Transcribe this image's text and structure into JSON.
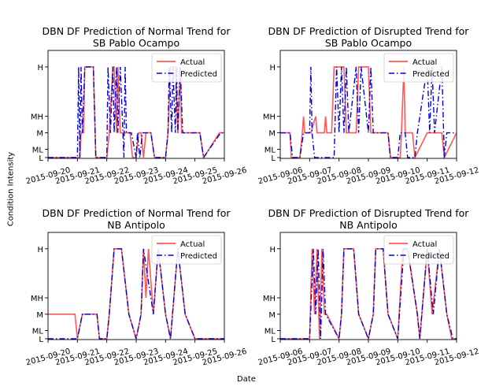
{
  "figure": {
    "xlabel": "Date",
    "ylabel": "Condition Intensity"
  },
  "colors": {
    "actual": "#ff3b3b",
    "predicted": "#0000dd"
  },
  "chart_data": [
    {
      "type": "line",
      "title": "DBN DF Prediction of Normal Trend for\nSB Pablo Ocampo",
      "x_ticks": [
        "2015-09-20",
        "2015-09-21",
        "2015-09-22",
        "2015-09-23",
        "2015-09-24",
        "2015-09-25",
        "2015-09-26"
      ],
      "y_ticks": [
        "L",
        "ML",
        "M",
        "MH",
        "H"
      ],
      "y_levels": {
        "L": 0,
        "ML": 0.5,
        "M": 1.5,
        "MH": 2.5,
        "H": 5.5
      },
      "xlim": [
        "2015-09-20",
        "2015-09-26"
      ],
      "legend": {
        "position": "top-right",
        "entries": [
          "Actual",
          "Predicted"
        ]
      },
      "series": [
        {
          "name": "Actual",
          "style": "solid",
          "color": "#ff3b3b",
          "x": [
            "2015-09-20",
            "2015-09-21 00:00",
            "2015-09-21 02:00",
            "2015-09-21 03:00",
            "2015-09-21 05:00",
            "2015-09-21 06:00",
            "2015-09-21 13:00",
            "2015-09-21 15:00",
            "2015-09-22 00:00",
            "2015-09-22 02:00",
            "2015-09-22 05:00",
            "2015-09-22 06:00",
            "2015-09-22 08:00",
            "2015-09-22 09:00",
            "2015-09-22 11:00",
            "2015-09-22 19:00",
            "2015-09-22 21:00",
            "2015-09-23 00:00",
            "2015-09-23 02:00",
            "2015-09-23 04:00",
            "2015-09-23 06:00",
            "2015-09-23 08:00",
            "2015-09-23 12:00",
            "2015-09-23 15:00",
            "2015-09-24 00:00",
            "2015-09-24 02:00",
            "2015-09-24 04:00",
            "2015-09-24 08:00",
            "2015-09-24 10:00",
            "2015-09-24 12:00",
            "2015-09-24 13:00",
            "2015-09-25 04:00",
            "2015-09-25 07:00",
            "2015-09-25 20:00",
            "2015-09-26"
          ],
          "y": [
            0,
            0,
            0,
            1.5,
            1.5,
            5.5,
            5.5,
            0,
            0,
            1.5,
            5.5,
            5.5,
            1.5,
            5.5,
            1.5,
            1.5,
            0,
            0,
            1.5,
            1.5,
            0,
            1.5,
            1.5,
            0,
            0,
            1.5,
            5.5,
            5.5,
            1.5,
            5.5,
            1.5,
            1.5,
            0,
            1.5,
            1.5
          ]
        },
        {
          "name": "Predicted",
          "style": "dashdot",
          "color": "#0000dd",
          "x": [
            "2015-09-20",
            "2015-09-21 00:00",
            "2015-09-21 01:00",
            "2015-09-21 02:00",
            "2015-09-21 03:00",
            "2015-09-21 04:00",
            "2015-09-21 06:00",
            "2015-09-21 12:00",
            "2015-09-21 13:00",
            "2015-09-21 15:00",
            "2015-09-22 00:00",
            "2015-09-22 01:00",
            "2015-09-22 03:00",
            "2015-09-22 05:00",
            "2015-09-22 06:00",
            "2015-09-22 08:00",
            "2015-09-22 09:00",
            "2015-09-22 11:00",
            "2015-09-22 14:00",
            "2015-09-22 15:00",
            "2015-09-22 16:00",
            "2015-09-22 20:00",
            "2015-09-23 00:00",
            "2015-09-23 01:00",
            "2015-09-23 03:00",
            "2015-09-23 05:00",
            "2015-09-23 07:00",
            "2015-09-23 12:00",
            "2015-09-23 15:00",
            "2015-09-24 00:00",
            "2015-09-24 02:00",
            "2015-09-24 03:00",
            "2015-09-24 05:00",
            "2015-09-24 06:00",
            "2015-09-24 08:00",
            "2015-09-24 09:00",
            "2015-09-24 10:00",
            "2015-09-24 12:00",
            "2015-09-24 14:00",
            "2015-09-25 04:00",
            "2015-09-25 07:00",
            "2015-09-25 21:00",
            "2015-09-26"
          ],
          "y": [
            0,
            0,
            5.5,
            0,
            5.5,
            1.5,
            5.5,
            5.5,
            5.5,
            0,
            0,
            5.5,
            1.5,
            5.5,
            1.5,
            5.5,
            1.5,
            5.5,
            0,
            5.5,
            1.5,
            1.5,
            0,
            1.5,
            0,
            1.5,
            1.5,
            1.5,
            0,
            0,
            1.5,
            5.5,
            1.5,
            5.5,
            1.5,
            5.5,
            1.5,
            5.5,
            1.5,
            1.5,
            0,
            1.5,
            1.5
          ]
        }
      ]
    },
    {
      "type": "line",
      "title": "DBN DF Prediction of Disrupted Trend for\nSB Pablo Ocampo",
      "x_ticks": [
        "2015-09-06",
        "2015-09-07",
        "2015-09-08",
        "2015-09-09",
        "2015-09-10",
        "2015-09-11",
        "2015-09-12"
      ],
      "y_ticks": [
        "L",
        "ML",
        "M",
        "MH",
        "H"
      ],
      "y_levels": {
        "L": 0,
        "ML": 0.5,
        "M": 1.5,
        "MH": 2.5,
        "H": 5.5
      },
      "xlim": [
        "2015-09-06",
        "2015-09-12"
      ],
      "legend": {
        "position": "top-right",
        "entries": [
          "Actual",
          "Predicted"
        ]
      },
      "series": [
        {
          "name": "Actual",
          "style": "solid",
          "color": "#ff3b3b",
          "x": [
            "2015-09-06",
            "2015-09-06 08:00",
            "2015-09-06 09:00",
            "2015-09-06 16:00",
            "2015-09-06 18:00",
            "2015-09-06 19:00",
            "2015-09-06 20:00",
            "2015-09-06 21:00",
            "2015-09-07 00:00",
            "2015-09-07 01:00",
            "2015-09-07 05:00",
            "2015-09-07 06:00",
            "2015-09-07 07:00",
            "2015-09-07 12:00",
            "2015-09-07 13:00",
            "2015-09-07 14:00",
            "2015-09-07 16:00",
            "2015-09-07 18:00",
            "2015-09-07 20:00",
            "2015-09-08 04:00",
            "2015-09-08 06:00",
            "2015-09-08 14:00",
            "2015-09-08 16:00",
            "2015-09-09 00:00",
            "2015-09-09 02:00",
            "2015-09-09 16:00",
            "2015-09-09 18:00",
            "2015-09-10 00:00",
            "2015-09-10 02:00",
            "2015-09-10 03:00",
            "2015-09-10 05:00",
            "2015-09-10 06:00",
            "2015-09-10 12:00",
            "2015-09-10 14:00",
            "2015-09-11 00:00",
            "2015-09-11 12:00",
            "2015-09-11 14:00",
            "2015-09-12"
          ],
          "y": [
            1.5,
            1.5,
            0,
            0,
            1.5,
            2.5,
            1.5,
            1.5,
            1.5,
            1.5,
            2.5,
            1.5,
            1.5,
            1.5,
            2.5,
            1.5,
            1.5,
            1.5,
            5.5,
            5.5,
            1.5,
            1.5,
            5.5,
            5.5,
            1.5,
            1.5,
            0,
            0,
            0,
            1.5,
            5.5,
            1.5,
            1.5,
            0,
            1.5,
            1.5,
            0,
            1.5
          ]
        },
        {
          "name": "Predicted",
          "style": "dashdot",
          "color": "#0000dd",
          "x": [
            "2015-09-06",
            "2015-09-06 08:00",
            "2015-09-06 10:00",
            "2015-09-06 16:00",
            "2015-09-06 19:00",
            "2015-09-07 00:00",
            "2015-09-07 01:00",
            "2015-09-07 02:00",
            "2015-09-07 04:00",
            "2015-09-07 20:00",
            "2015-09-07 22:00",
            "2015-09-08 00:00",
            "2015-09-08 02:00",
            "2015-09-08 04:00",
            "2015-09-08 06:00",
            "2015-09-08 08:00",
            "2015-09-08 14:00",
            "2015-09-08 16:00",
            "2015-09-08 18:00",
            "2015-09-09 00:00",
            "2015-09-09 02:00",
            "2015-09-09 04:00",
            "2015-09-09 16:00",
            "2015-09-09 18:00",
            "2015-09-10 00:00",
            "2015-09-10 02:00",
            "2015-09-10 06:00",
            "2015-09-10 08:00",
            "2015-09-10 14:00",
            "2015-09-10 16:00",
            "2015-09-11 00:00",
            "2015-09-11 02:00",
            "2015-09-11 04:00",
            "2015-09-11 06:00",
            "2015-09-11 12:00",
            "2015-09-11 14:00",
            "2015-09-11 16:00",
            "2015-09-12"
          ],
          "y": [
            1.5,
            1.5,
            0,
            0,
            1.5,
            1.5,
            5.5,
            1.5,
            0,
            0,
            5.5,
            1.5,
            5.5,
            1.5,
            5.5,
            1.5,
            5.5,
            1.5,
            5.5,
            1.5,
            5.5,
            1.5,
            1.5,
            0,
            0,
            1.5,
            1.5,
            0,
            0,
            1.5,
            5.5,
            1.5,
            5.5,
            1.5,
            5.5,
            0,
            1.5,
            1.5
          ]
        }
      ]
    },
    {
      "type": "line",
      "title": "DBN DF Prediction of Normal Trend for\nNB Antipolo",
      "x_ticks": [
        "2015-09-20",
        "2015-09-21",
        "2015-09-22",
        "2015-09-23",
        "2015-09-24",
        "2015-09-25",
        "2015-09-26"
      ],
      "y_ticks": [
        "L",
        "ML",
        "M",
        "MH",
        "H"
      ],
      "y_levels": {
        "L": 0,
        "ML": 0.5,
        "M": 1.5,
        "MH": 2.5,
        "H": 5.5
      },
      "xlim": [
        "2015-09-20",
        "2015-09-26"
      ],
      "legend": {
        "position": "top-right",
        "entries": [
          "Actual",
          "Predicted"
        ]
      },
      "series": [
        {
          "name": "Actual",
          "style": "solid",
          "color": "#ff3b3b",
          "x": [
            "2015-09-20",
            "2015-09-20 22:00",
            "2015-09-21 00:00",
            "2015-09-21 04:00",
            "2015-09-21 16:00",
            "2015-09-21 18:00",
            "2015-09-22 00:00",
            "2015-09-22 02:00",
            "2015-09-22 06:00",
            "2015-09-22 12:00",
            "2015-09-22 18:00",
            "2015-09-23 00:00",
            "2015-09-23 04:00",
            "2015-09-23 06:00",
            "2015-09-23 08:00",
            "2015-09-23 10:00",
            "2015-09-23 14:00",
            "2015-09-23 18:00",
            "2015-09-24 00:00",
            "2015-09-24 04:00",
            "2015-09-24 10:00",
            "2015-09-24 16:00",
            "2015-09-25 00:00",
            "2015-09-26"
          ],
          "y": [
            1.5,
            1.5,
            0,
            1.5,
            1.5,
            0,
            0,
            1.5,
            5.5,
            5.5,
            1.5,
            0,
            1.5,
            5.5,
            2.5,
            5.5,
            1.5,
            5.5,
            1.5,
            0,
            5.5,
            1.5,
            0,
            0
          ]
        },
        {
          "name": "Predicted",
          "style": "dashdot",
          "color": "#0000dd",
          "x": [
            "2015-09-20",
            "2015-09-21 00:00",
            "2015-09-21 04:00",
            "2015-09-21 16:00",
            "2015-09-21 18:00",
            "2015-09-22 00:00",
            "2015-09-22 02:00",
            "2015-09-22 06:00",
            "2015-09-22 12:00",
            "2015-09-22 18:00",
            "2015-09-23 00:00",
            "2015-09-23 04:00",
            "2015-09-23 06:00",
            "2015-09-23 14:00",
            "2015-09-23 18:00",
            "2015-09-24 00:00",
            "2015-09-24 04:00",
            "2015-09-24 10:00",
            "2015-09-24 16:00",
            "2015-09-25 00:00",
            "2015-09-26"
          ],
          "y": [
            0,
            0,
            1.5,
            1.5,
            0,
            0,
            1.5,
            5.5,
            5.5,
            1.5,
            0,
            1.5,
            5.5,
            1.5,
            5.5,
            1.5,
            0,
            5.5,
            1.5,
            0,
            0
          ]
        }
      ]
    },
    {
      "type": "line",
      "title": "DBN DF Prediction of Disrupted Trend for\nNB Antipolo",
      "x_ticks": [
        "2015-09-06",
        "2015-09-07",
        "2015-09-08",
        "2015-09-09",
        "2015-09-10",
        "2015-09-11",
        "2015-09-12"
      ],
      "y_ticks": [
        "L",
        "ML",
        "M",
        "MH",
        "H"
      ],
      "y_levels": {
        "L": 0,
        "ML": 0.5,
        "M": 1.5,
        "MH": 2.5,
        "H": 5.5
      },
      "xlim": [
        "2015-09-06",
        "2015-09-12"
      ],
      "legend": {
        "position": "top-right",
        "entries": [
          "Actual",
          "Predicted"
        ]
      },
      "series": [
        {
          "name": "Actual",
          "style": "solid",
          "color": "#ff3b3b",
          "x": [
            "2015-09-06",
            "2015-09-07 00:00",
            "2015-09-07 02:00",
            "2015-09-07 04:00",
            "2015-09-07 06:00",
            "2015-09-07 08:00",
            "2015-09-07 10:00",
            "2015-09-07 12:00",
            "2015-09-07 14:00",
            "2015-09-08 00:00",
            "2015-09-08 02:00",
            "2015-09-08 04:00",
            "2015-09-08 12:00",
            "2015-09-08 16:00",
            "2015-09-09 00:00",
            "2015-09-09 04:00",
            "2015-09-09 06:00",
            "2015-09-09 12:00",
            "2015-09-09 16:00",
            "2015-09-10 00:00",
            "2015-09-10 04:00",
            "2015-09-10 08:00",
            "2015-09-10 16:00",
            "2015-09-10 18:00",
            "2015-09-11 00:00",
            "2015-09-11 04:00",
            "2015-09-11 10:00",
            "2015-09-11 16:00",
            "2015-09-11 20:00",
            "2015-09-12"
          ],
          "y": [
            0,
            0,
            5.5,
            1.5,
            5.5,
            0,
            5.5,
            1.5,
            1.5,
            0,
            1.5,
            5.5,
            5.5,
            1.5,
            0,
            1.5,
            5.5,
            5.5,
            1.5,
            0,
            5.5,
            5.5,
            1.5,
            0,
            5.5,
            1.5,
            5.5,
            1.5,
            0,
            0
          ]
        },
        {
          "name": "Predicted",
          "style": "dashdot",
          "color": "#0000dd",
          "x": [
            "2015-09-06",
            "2015-09-07 00:00",
            "2015-09-07 03:00",
            "2015-09-07 05:00",
            "2015-09-07 07:00",
            "2015-09-07 09:00",
            "2015-09-07 11:00",
            "2015-09-07 13:00",
            "2015-09-08 00:00",
            "2015-09-08 02:00",
            "2015-09-08 04:00",
            "2015-09-08 12:00",
            "2015-09-08 16:00",
            "2015-09-09 00:00",
            "2015-09-09 04:00",
            "2015-09-09 06:00",
            "2015-09-09 12:00",
            "2015-09-09 16:00",
            "2015-09-10 00:00",
            "2015-09-10 05:00",
            "2015-09-10 08:00",
            "2015-09-10 16:00",
            "2015-09-10 18:00",
            "2015-09-11 00:00",
            "2015-09-11 05:00",
            "2015-09-11 10:00",
            "2015-09-11 16:00",
            "2015-09-11 21:00",
            "2015-09-12"
          ],
          "y": [
            0,
            0,
            5.5,
            1.5,
            5.5,
            0,
            5.5,
            1.5,
            0,
            1.5,
            5.5,
            5.5,
            1.5,
            0,
            1.5,
            5.5,
            5.5,
            1.5,
            0,
            5.5,
            5.5,
            1.5,
            0,
            5.5,
            1.5,
            5.5,
            1.5,
            0,
            0
          ]
        }
      ]
    }
  ]
}
